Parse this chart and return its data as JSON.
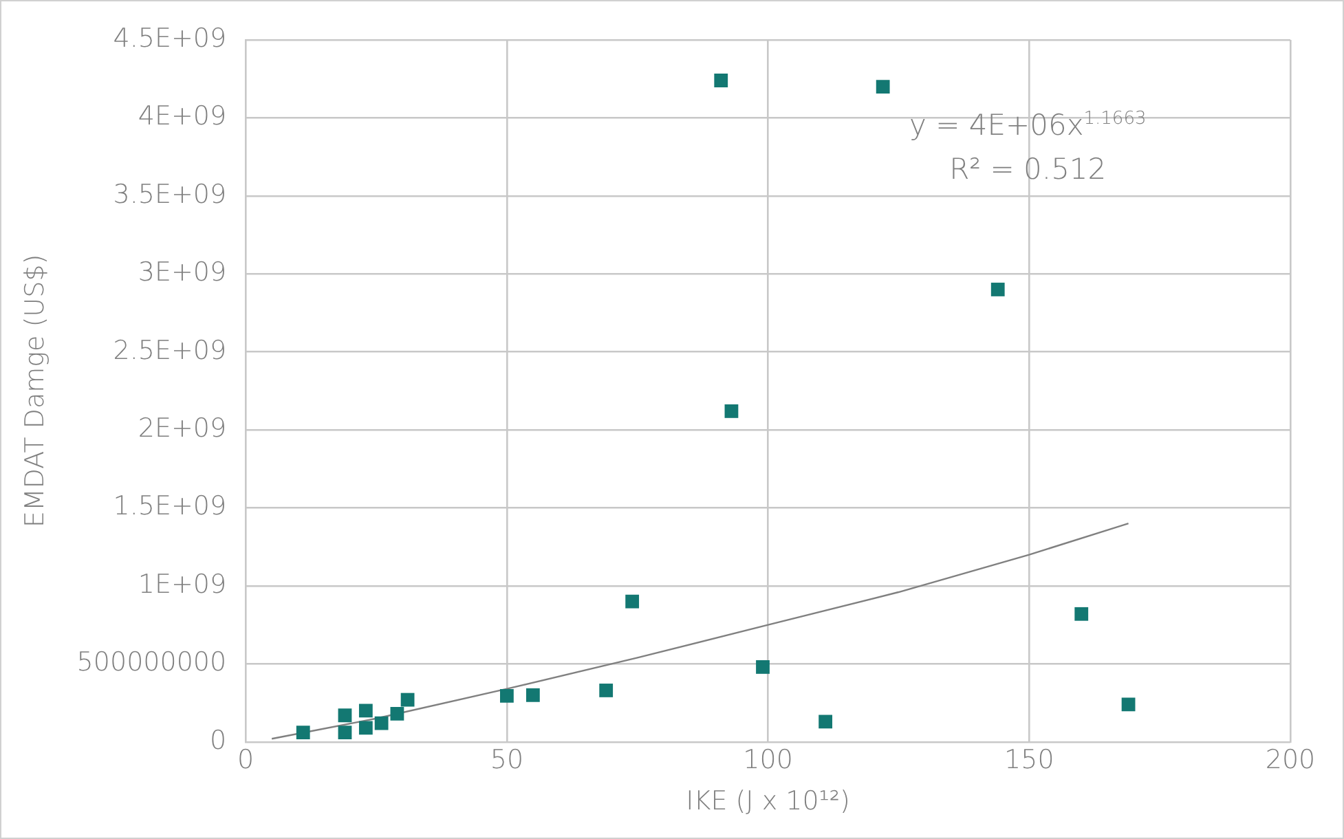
{
  "chart_data": {
    "type": "scatter",
    "xlabel": "IKE (J x 10¹²)",
    "ylabel": "EMDAT Damge (US$)",
    "xlim": [
      0,
      200
    ],
    "xticks": [
      0,
      50,
      100,
      150,
      200
    ],
    "ylim": [
      0,
      4500000000
    ],
    "yticks": [
      {
        "value": 0,
        "label": "0"
      },
      {
        "value": 500000000,
        "label": "500000000"
      },
      {
        "value": 1000000000,
        "label": "1E+09"
      },
      {
        "value": 1500000000,
        "label": "1.5E+09"
      },
      {
        "value": 2000000000,
        "label": "2E+09"
      },
      {
        "value": 2500000000,
        "label": "2.5E+09"
      },
      {
        "value": 3000000000,
        "label": "3E+09"
      },
      {
        "value": 3500000000,
        "label": "3.5E+09"
      },
      {
        "value": 4000000000,
        "label": "4E+09"
      },
      {
        "value": 4500000000,
        "label": "4.5E+09"
      }
    ],
    "grid": true,
    "marker": "square",
    "legend": false,
    "series": [
      {
        "color": "#137872",
        "x": [
          11,
          19,
          19,
          23,
          23,
          26,
          29,
          31,
          50,
          55,
          69,
          74,
          91,
          93,
          99,
          111,
          122,
          144,
          160,
          169
        ],
        "values": [
          60000000,
          170000000,
          60000000,
          200000000,
          90000000,
          120000000,
          180000000,
          270000000,
          295000000,
          300000000,
          330000000,
          900000000,
          4240000000,
          2120000000,
          480000000,
          130000000,
          4200000000,
          2900000000,
          820000000,
          240000000
        ]
      },
      {
        "type": "line",
        "color": "#808080",
        "marker": "none",
        "x": [
          5,
          25,
          50,
          75,
          100,
          125,
          150,
          169
        ],
        "values": [
          20000000,
          150000000,
          340000000,
          540000000,
          750000000,
          960000000,
          1200000000,
          1400000000
        ]
      }
    ],
    "annotations": [
      "y = 4E+06x$^{1.1663}$",
      "R² = 0.512"
    ]
  }
}
